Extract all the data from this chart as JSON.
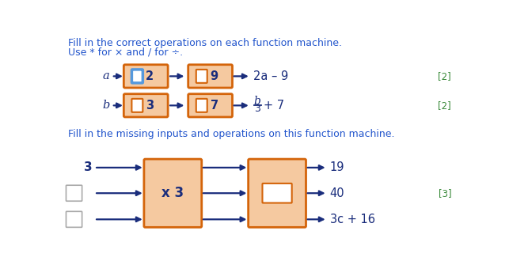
{
  "bg_color": "#ffffff",
  "blue_text_color": "#2255cc",
  "dark_blue": "#1a2d7c",
  "green_text_color": "#3a8a3a",
  "orange_box_fill": "#f5c9a0",
  "orange_box_edge": "#d4640a",
  "blue_box_edge": "#5599dd",
  "white_box_fill": "#ffffff",
  "arrow_color": "#1a2d7c",
  "line1": "Fill in the correct operations on each function machine.",
  "line2": "Use * for × and / for ÷.",
  "line3": "Fill in the missing inputs and operations on this function machine.",
  "row_a_input": "a",
  "row_a_box1_text": "2",
  "row_a_box2_text": "9",
  "row_a_output": "2a – 9",
  "row_a_mark": "[2]",
  "row_b_input": "b",
  "row_b_box1_text": "3",
  "row_b_box2_text": "7",
  "row_b_mark": "[2]",
  "row3_inputs": [
    "3",
    "",
    ""
  ],
  "machine1_label": "x 3",
  "machine2_outputs": [
    "19",
    "40",
    "3c + 16"
  ],
  "row3_mark": "[3]"
}
